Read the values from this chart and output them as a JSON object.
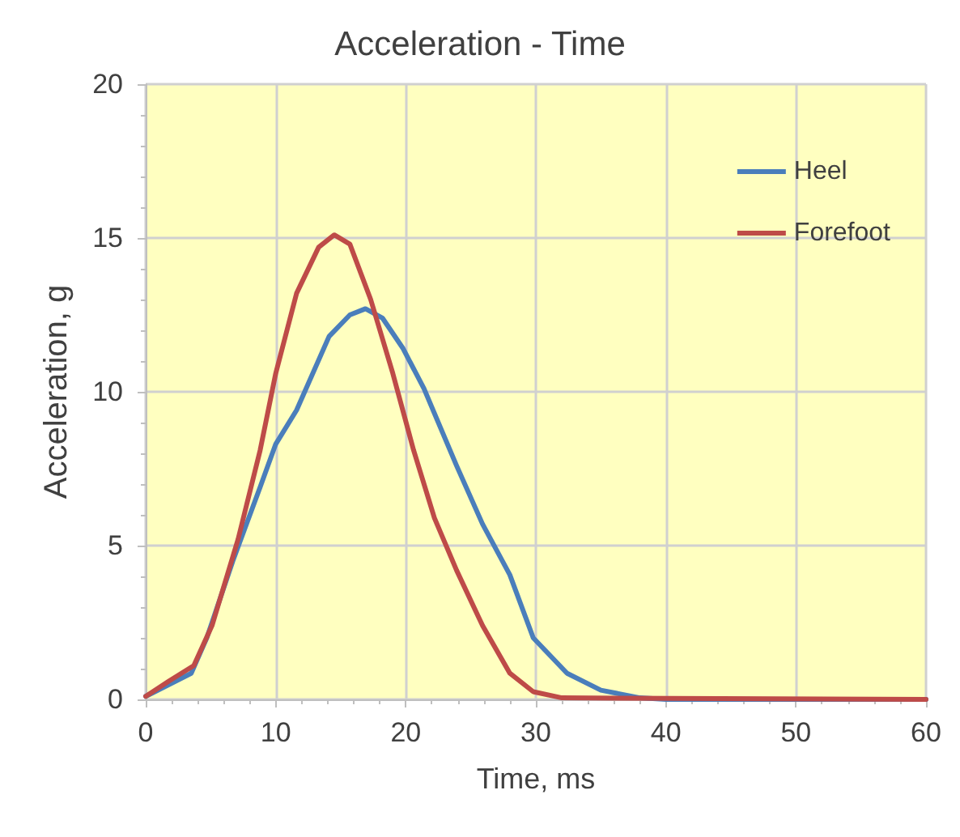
{
  "chart_data": {
    "type": "line",
    "title": "Acceleration - Time",
    "xlabel": "Time, ms",
    "ylabel": "Acceleration, g",
    "xlim": [
      0,
      60
    ],
    "xticks": [
      0,
      10,
      20,
      30,
      40,
      50,
      60
    ],
    "ylim": [
      0,
      20
    ],
    "yticks": [
      0,
      5,
      10,
      15,
      20
    ],
    "grid": true,
    "legend": "top right",
    "marker": "none",
    "line_style": "solid",
    "series": [
      {
        "name": "Heel",
        "color": "#4a7ebb",
        "x": [
          0,
          3.5,
          4.7,
          6.7,
          8.8,
          10,
          11.6,
          14.1,
          15.7,
          16.9,
          18.2,
          19.8,
          21.4,
          23.9,
          25.9,
          28,
          29.8,
          32.4,
          35,
          38,
          40,
          60
        ],
        "values": [
          0.1,
          0.85,
          2,
          4.5,
          6.9,
          8.3,
          9.4,
          11.8,
          12.5,
          12.7,
          12.4,
          11.4,
          10.1,
          7.6,
          5.7,
          4.05,
          2,
          0.85,
          0.3,
          0.05,
          0,
          0
        ]
      },
      {
        "name": "Forefoot",
        "color": "#be4b48",
        "x": [
          0,
          1.8,
          3.7,
          5.1,
          7.1,
          8.8,
          10,
          11.6,
          13.3,
          14.5,
          15.7,
          17.3,
          19,
          20.6,
          22.2,
          23.9,
          25.9,
          28,
          29.8,
          32,
          60
        ],
        "values": [
          0.1,
          0.6,
          1.1,
          2.4,
          5.2,
          8.1,
          10.6,
          13.2,
          14.7,
          15.1,
          14.8,
          13,
          10.6,
          8.1,
          5.9,
          4.2,
          2.4,
          0.85,
          0.25,
          0.05,
          0
        ]
      }
    ]
  }
}
